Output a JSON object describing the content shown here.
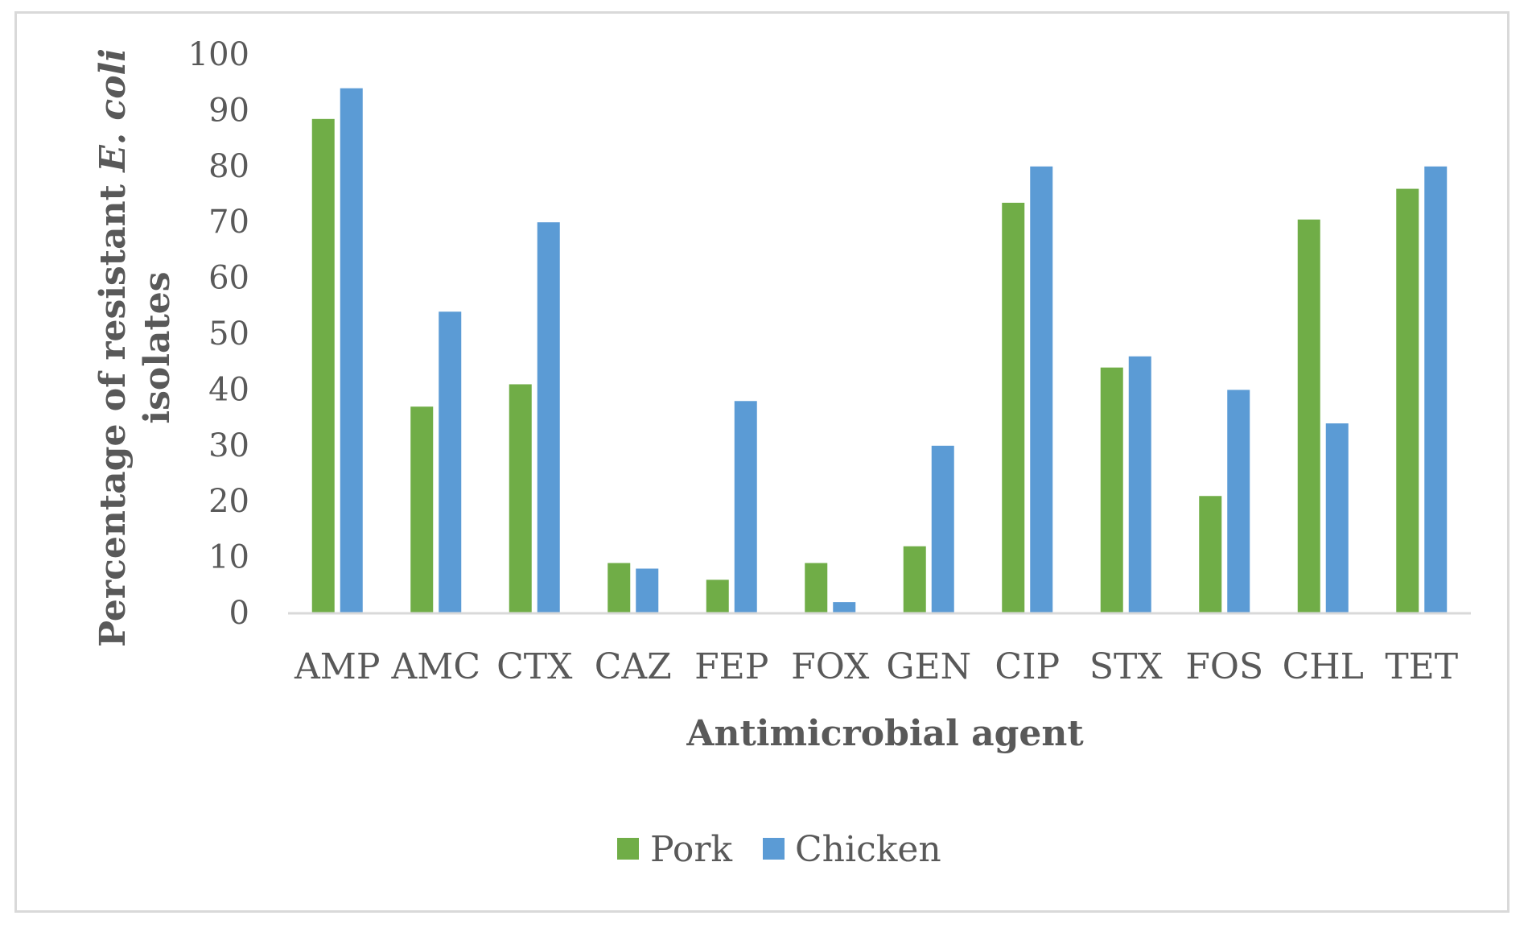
{
  "chart_data": {
    "type": "bar",
    "title": "",
    "xlabel": "Antimicrobial agent",
    "ylabel_prefix": "Percentage of resistant ",
    "ylabel_italic": "E. coli",
    "ylabel_line2": "isolates",
    "ylim": [
      0,
      100
    ],
    "yticks": [
      "0",
      "10",
      "20",
      "30",
      "40",
      "50",
      "60",
      "70",
      "80",
      "90",
      "100"
    ],
    "categories": [
      "AMP",
      "AMC",
      "CTX",
      "CAZ",
      "FEP",
      "FOX",
      "GEN",
      "CIP",
      "STX",
      "FOS",
      "CHL",
      "TET"
    ],
    "series": [
      {
        "name": "Pork",
        "color": "#70ad47",
        "values": [
          88.5,
          37,
          41,
          9,
          6,
          9,
          12,
          73.5,
          44,
          21,
          70.5,
          76
        ]
      },
      {
        "name": "Chicken",
        "color": "#5b9bd5",
        "values": [
          94,
          54,
          70,
          8,
          38,
          2,
          30,
          80,
          46,
          40,
          34,
          80
        ]
      }
    ],
    "grid": false,
    "legend_position": "bottom"
  }
}
